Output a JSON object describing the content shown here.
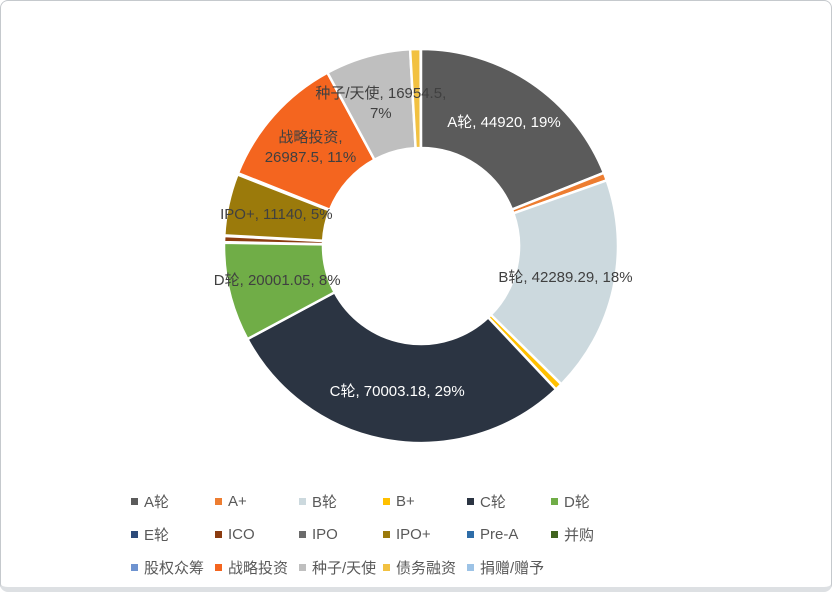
{
  "window": {
    "background": "#ffffff",
    "border_color": "#c5c9cd"
  },
  "chart_data": {
    "type": "pie",
    "subtype": "donut",
    "title": "",
    "legend_position": "bottom",
    "grid": false,
    "donut_hole_ratio": 0.5,
    "slice_separator_color": "#ffffff",
    "slices": [
      {
        "name": "A轮",
        "value": 44920,
        "pct_label": "19%",
        "arc_pct": 18.95,
        "color": "#5B5B5B",
        "display": "A轮, 44920, 19%",
        "label_color": "#FFFFFF"
      },
      {
        "name": "A+",
        "value": null,
        "pct_label": null,
        "arc_pct": 0.65,
        "color": "#ED7D31",
        "display": null,
        "label_color": null
      },
      {
        "name": "B轮",
        "value": 42289.29,
        "pct_label": "18%",
        "arc_pct": 17.8,
        "color": "#CCD9DE",
        "display": "B轮, 42289.29, 18%",
        "label_color": "#404040"
      },
      {
        "name": "B+",
        "value": null,
        "pct_label": null,
        "arc_pct": 0.6,
        "color": "#FFC000",
        "display": null,
        "label_color": null
      },
      {
        "name": "C轮",
        "value": 70003.18,
        "pct_label": "29%",
        "arc_pct": 29.2,
        "color": "#2B3442",
        "display": "C轮, 70003.18, 29%",
        "label_color": "#FFFFFF"
      },
      {
        "name": "D轮",
        "value": 20001.05,
        "pct_label": "8%",
        "arc_pct": 8.1,
        "color": "#70AD47",
        "display": "D轮, 20001.05, 8%",
        "label_color": "#404040"
      },
      {
        "name": "E轮",
        "value": null,
        "pct_label": null,
        "arc_pct": 0.05,
        "color": "#2D4B7A",
        "display": null,
        "label_color": null
      },
      {
        "name": "ICO",
        "value": null,
        "pct_label": null,
        "arc_pct": 0.5,
        "color": "#8B3C10",
        "display": null,
        "label_color": null
      },
      {
        "name": "IPO",
        "value": null,
        "pct_label": null,
        "arc_pct": 0.05,
        "color": "#6B6B6B",
        "display": null,
        "label_color": null
      },
      {
        "name": "IPO+",
        "value": 11140,
        "pct_label": "5%",
        "arc_pct": 5.05,
        "color": "#9B7A0B",
        "display": "IPO+, 11140, 5%",
        "label_color": "#404040"
      },
      {
        "name": "Pre-A",
        "value": null,
        "pct_label": null,
        "arc_pct": 0.04,
        "color": "#2E6DA8",
        "display": null,
        "label_color": null
      },
      {
        "name": "并购",
        "value": null,
        "pct_label": null,
        "arc_pct": 0.04,
        "color": "#41641F",
        "display": null,
        "label_color": null
      },
      {
        "name": "股权众筹",
        "value": null,
        "pct_label": null,
        "arc_pct": 0.04,
        "color": "#6E93D0",
        "display": null,
        "label_color": null
      },
      {
        "name": "战略投资",
        "value": 26987.5,
        "pct_label": "11%",
        "arc_pct": 11.1,
        "color": "#F4651F",
        "display": "战略投资,\n26987.5, 11%",
        "label_color": "#404040"
      },
      {
        "name": "种子/天使",
        "value": 16954.5,
        "pct_label": "7%",
        "arc_pct": 7.0,
        "color": "#BFBFBF",
        "display": "种子/天使, 16954.5,\n7%",
        "label_color": "#404040"
      },
      {
        "name": "债务融资",
        "value": null,
        "pct_label": null,
        "arc_pct": 0.85,
        "color": "#F2C141",
        "display": null,
        "label_color": null
      },
      {
        "name": "捐赠/赠予",
        "value": null,
        "pct_label": null,
        "arc_pct": 0.03,
        "color": "#9DC3E6",
        "display": null,
        "label_color": null
      }
    ]
  }
}
